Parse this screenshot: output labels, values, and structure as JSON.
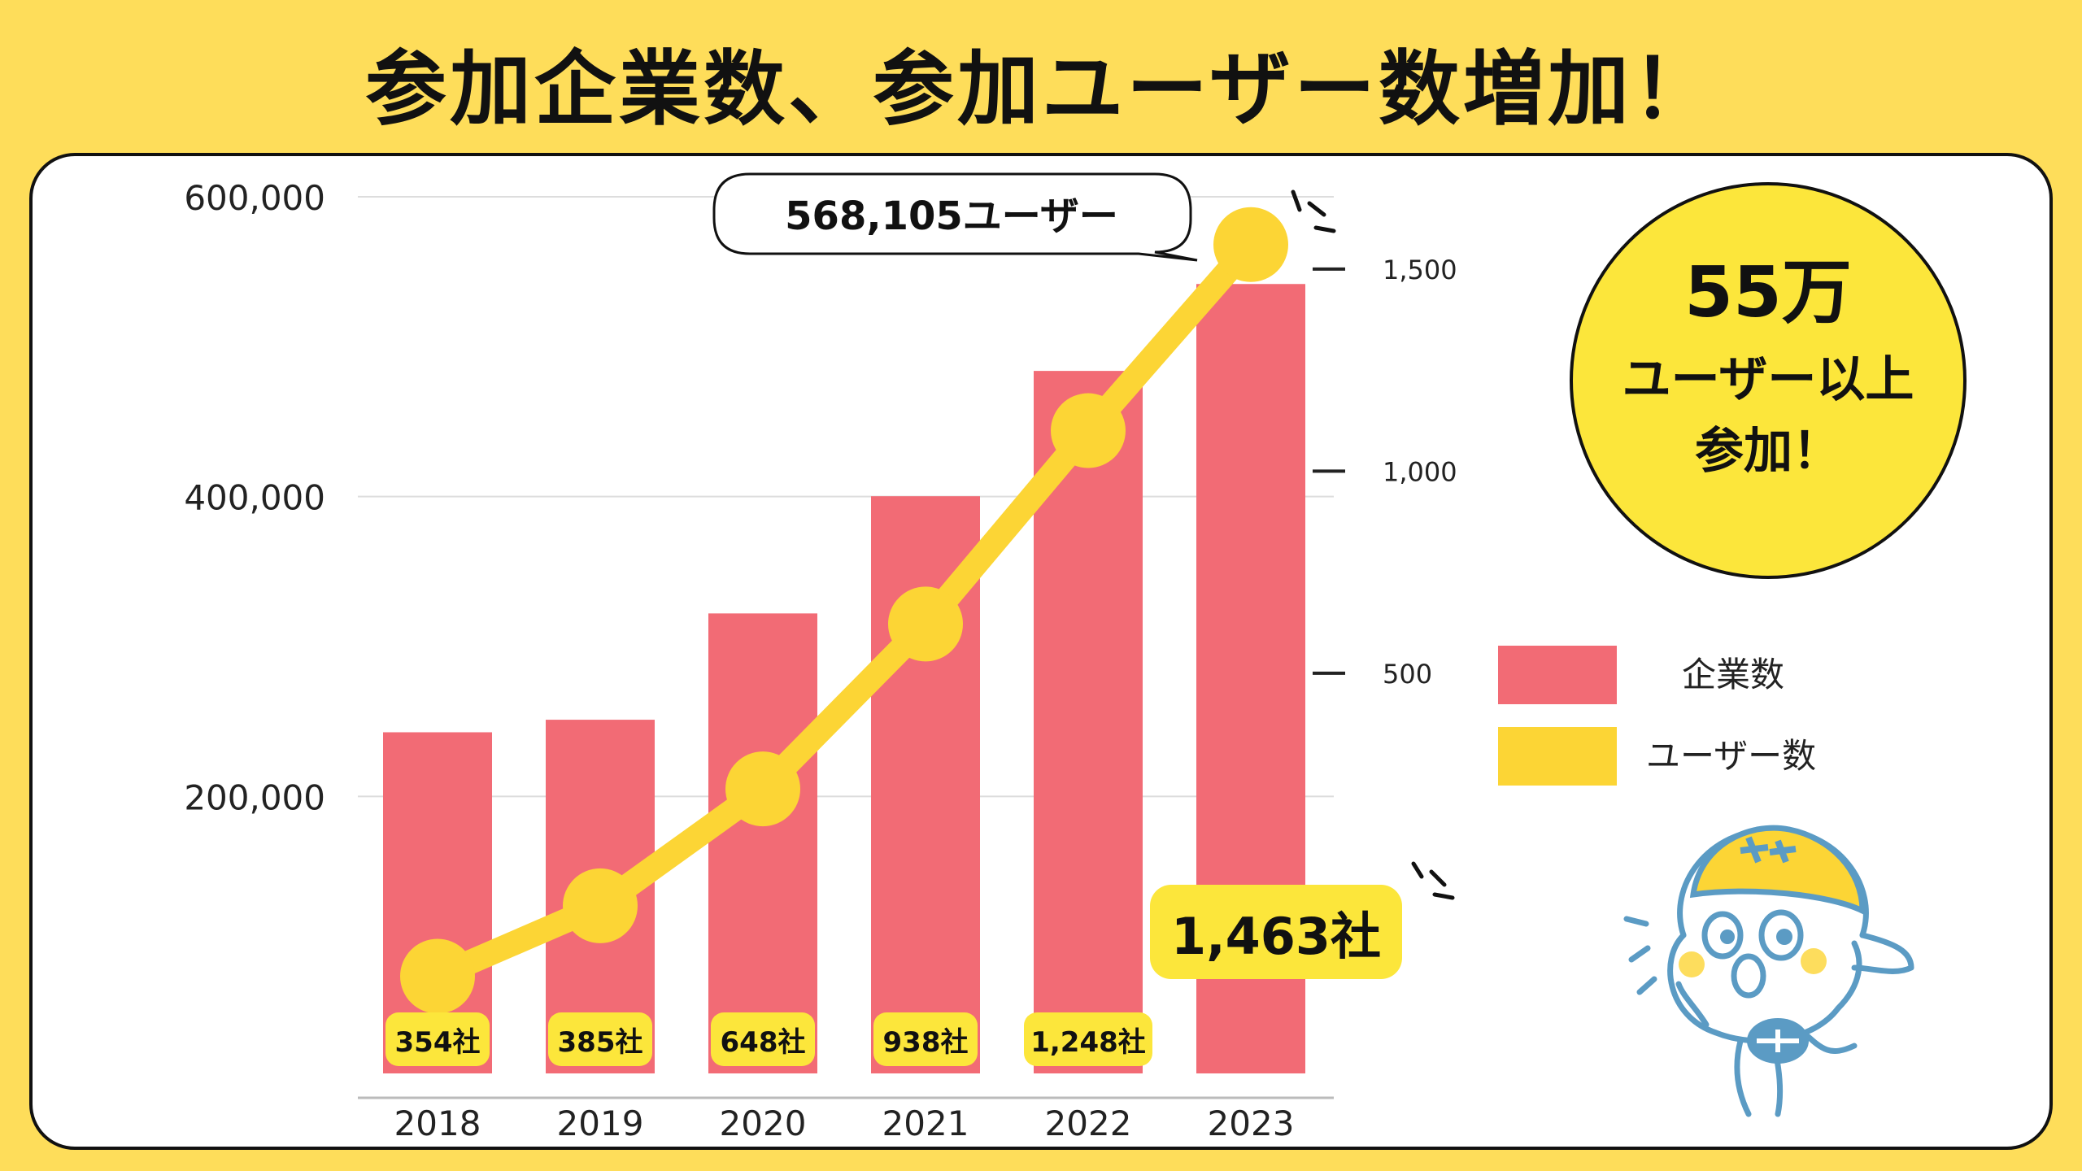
{
  "title": "参加企業数、参加ユーザー数増加！",
  "colors": {
    "background": "#FEDD5A",
    "bar": "#F26B75",
    "line": "#FCD535",
    "badge": "#FCE63B"
  },
  "chart_data": {
    "type": "bar+line",
    "categories": [
      "2018",
      "2019",
      "2020",
      "2021",
      "2022",
      "2023"
    ],
    "left_axis": {
      "ticks": [
        "200,000",
        "400,000",
        "600,000"
      ],
      "tick_values": [
        200000,
        400000,
        600000
      ],
      "ylim": [
        0,
        600000
      ]
    },
    "right_axis": {
      "ticks": [
        "500",
        "1,000",
        "1,500"
      ],
      "tick_values": [
        500,
        1000,
        1500
      ],
      "ylim": [
        -490,
        1550
      ]
    },
    "grid": "horizontal",
    "series": [
      {
        "name": "企業数",
        "type": "bar",
        "axis": "right",
        "values": [
          354,
          385,
          648,
          938,
          1248,
          1463
        ],
        "labels": [
          "354社",
          "385社",
          "648社",
          "938社",
          "1,248社",
          "1,463社"
        ]
      },
      {
        "name": "ユーザー数",
        "type": "line",
        "axis": "left",
        "values": [
          80000,
          127000,
          205000,
          315000,
          444000,
          568105
        ]
      }
    ],
    "annotations": {
      "user_callout": "568,105ユーザー",
      "company_callout": "1,463社"
    },
    "legend": [
      "企業数",
      "ユーザー数"
    ],
    "legend_position": "right"
  },
  "badge": {
    "line1": "55万",
    "line2": "ユーザー以上",
    "line3": "参加！"
  },
  "mascot_icon": "helmet-mascot-icon"
}
